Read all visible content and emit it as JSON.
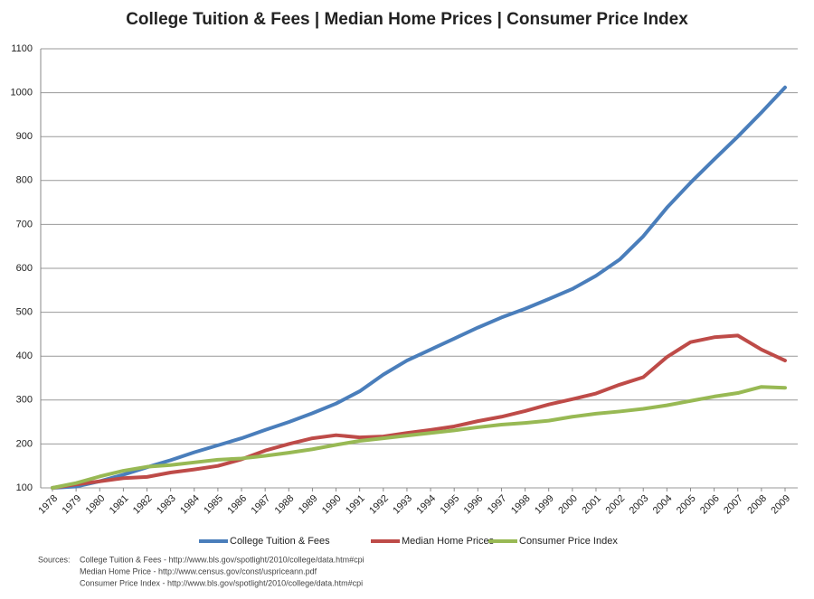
{
  "chart_data": {
    "type": "line",
    "title": "College Tuition & Fees | Median Home Prices | Consumer Price Index",
    "categories": [
      "1978",
      "1979",
      "1980",
      "1981",
      "1982",
      "1983",
      "1984",
      "1985",
      "1986",
      "1987",
      "1988",
      "1989",
      "1990",
      "1991",
      "1992",
      "1993",
      "1994",
      "1995",
      "1996",
      "1997",
      "1998",
      "1999",
      "2000",
      "2001",
      "2002",
      "2003",
      "2004",
      "2005",
      "2006",
      "2007",
      "2008",
      "2009"
    ],
    "series": [
      {
        "name": "College Tuition & Fees",
        "color": "#4a7ebb",
        "values": [
          100,
          103,
          115,
          130,
          147,
          163,
          181,
          197,
          213,
          232,
          250,
          270,
          292,
          320,
          358,
          390,
          415,
          440,
          465,
          488,
          508,
          530,
          553,
          583,
          620,
          673,
          738,
          795,
          848,
          900,
          955,
          1012
        ]
      },
      {
        "name": "Median Home Prices",
        "color": "#be4b48",
        "values": [
          100,
          108,
          115,
          122,
          125,
          135,
          142,
          150,
          165,
          185,
          200,
          213,
          220,
          215,
          217,
          225,
          232,
          240,
          252,
          262,
          275,
          290,
          302,
          315,
          335,
          352,
          398,
          432,
          443,
          447,
          415,
          390
        ]
      },
      {
        "name": "Consumer Price Index",
        "color": "#98b954",
        "values": [
          100,
          111,
          126,
          139,
          148,
          152,
          158,
          164,
          167,
          173,
          180,
          188,
          198,
          207,
          213,
          219,
          225,
          231,
          238,
          244,
          248,
          253,
          262,
          269,
          274,
          280,
          288,
          298,
          308,
          316,
          330,
          328
        ]
      }
    ],
    "ylim": [
      100,
      1100
    ],
    "yticks": [
      100,
      200,
      300,
      400,
      500,
      600,
      700,
      800,
      900,
      1000,
      1100
    ],
    "grid": true,
    "legend": "bottom",
    "sources": {
      "label": "Sources:",
      "lines": [
        "College Tuition & Fees - http://www.bls.gov/spotlight/2010/college/data.htm#cpi",
        "Median Home Price - http://www.census.gov/const/uspriceann.pdf",
        "Consumer Price Index - http://www.bls.gov/spotlight/2010/college/data.htm#cpi"
      ]
    }
  }
}
